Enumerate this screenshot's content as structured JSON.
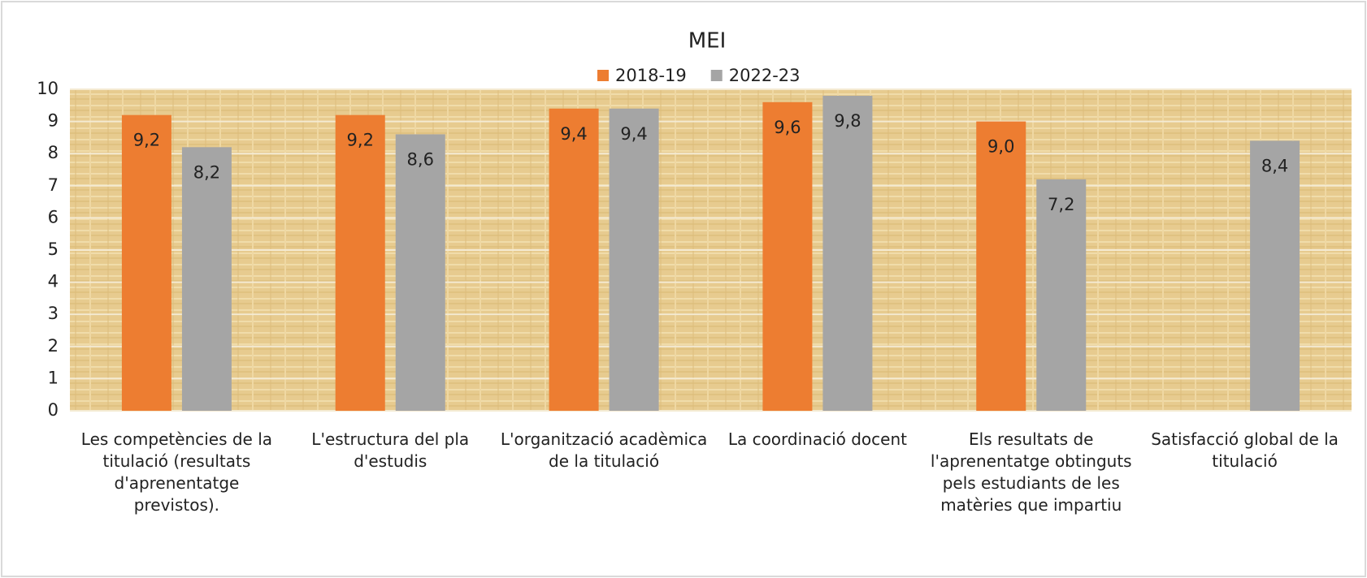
{
  "chart_data": {
    "type": "bar",
    "title": "MEI",
    "categories": [
      "Les competències de la titulació (resultats d'aprenentatge previstos).",
      "L'estructura del pla d'estudis",
      "L'organització acadèmica de la titulació",
      "La coordinació docent",
      "Els resultats de l'aprenentatge obtinguts pels estudiants de les matèries que impartiu",
      "Satisfacció global de la titulació"
    ],
    "series": [
      {
        "name": "2018-19",
        "color": "#ed7d31",
        "values": [
          9.2,
          9.2,
          9.4,
          9.6,
          9.0,
          null
        ],
        "value_labels": [
          "9,2",
          "9,2",
          "9,4",
          "9,6",
          "9,0",
          null
        ]
      },
      {
        "name": "2022-23",
        "color": "#a5a5a5",
        "values": [
          8.2,
          8.6,
          9.4,
          9.8,
          7.2,
          8.4
        ],
        "value_labels": [
          "8,2",
          "8,6",
          "9,4",
          "9,8",
          "7,2",
          "8,4"
        ]
      }
    ],
    "ylim": [
      0,
      10
    ],
    "yticks": [
      0,
      1,
      2,
      3,
      4,
      5,
      6,
      7,
      8,
      9,
      10
    ],
    "grid": true,
    "legend": "top"
  }
}
